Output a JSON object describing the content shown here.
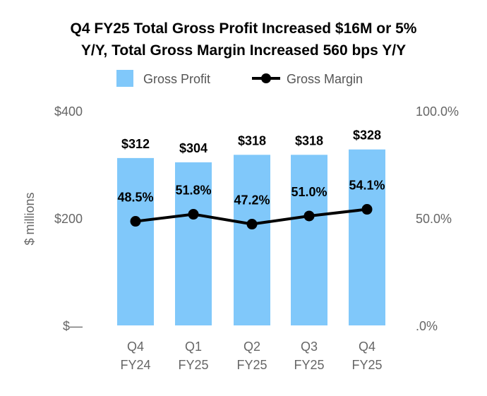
{
  "chart_data": {
    "type": "bar",
    "title_lines": [
      "Q4 FY25 Total Gross Profit Increased $16M or 5%",
      "Y/Y, Total Gross Margin Increased 560 bps Y/Y"
    ],
    "categories": [
      [
        "Q4",
        "FY24"
      ],
      [
        "Q1",
        "FY25"
      ],
      [
        "Q2",
        "FY25"
      ],
      [
        "Q3",
        "FY25"
      ],
      [
        "Q4",
        "FY25"
      ]
    ],
    "ylabel": "$ millions",
    "ylim": [
      0,
      400
    ],
    "y_ticks": [
      "$—",
      "$200",
      "$400"
    ],
    "y2lim": [
      0,
      100
    ],
    "y2_ticks": [
      ".0%",
      "50.0%",
      "100.0%"
    ],
    "legend_position": "top",
    "grid": false,
    "series": [
      {
        "name": "Gross Profit",
        "type": "bar",
        "color": "#80C8FA",
        "values": [
          312,
          304,
          318,
          318,
          328
        ],
        "labels": [
          "$312",
          "$304",
          "$318",
          "$318",
          "$328"
        ]
      },
      {
        "name": "Gross Margin",
        "type": "line",
        "axis": "right",
        "color": "#000000",
        "values": [
          48.5,
          51.8,
          47.2,
          51.0,
          54.1
        ],
        "labels": [
          "48.5%",
          "51.8%",
          "47.2%",
          "51.0%",
          "54.1%"
        ]
      }
    ]
  }
}
